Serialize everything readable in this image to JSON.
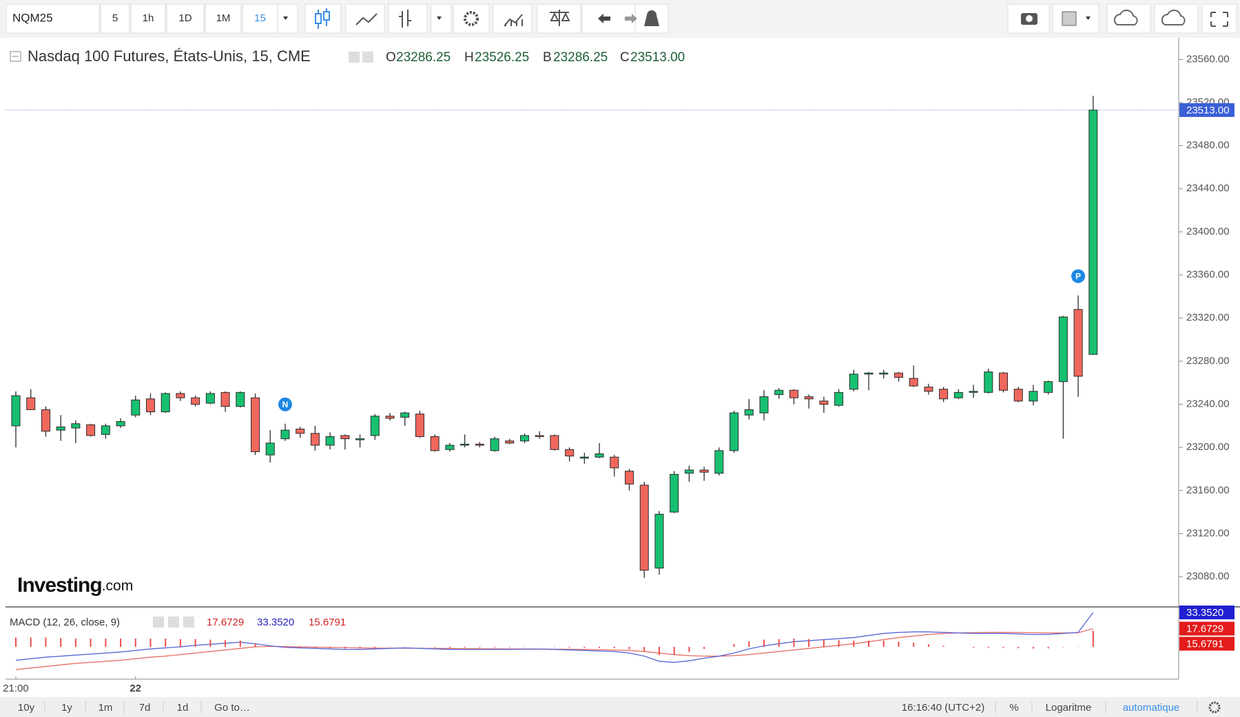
{
  "toolbar": {
    "symbol": "NQM25",
    "intervals": [
      "5",
      "1h",
      "1D",
      "1M",
      "15"
    ]
  },
  "chart_data": [
    {
      "type": "candlestick",
      "title": "Nasdaq 100 Futures, États-Unis, 15, CME",
      "ohlc_legend": [
        {
          "key": "O",
          "value": "23286.25"
        },
        {
          "key": "H",
          "value": "23526.25"
        },
        {
          "key": "B",
          "value": "23286.25"
        },
        {
          "key": "C",
          "value": "23513.00"
        }
      ],
      "categories": [
        "21:00",
        null,
        null,
        null,
        null,
        null,
        null,
        null,
        "22",
        null,
        null,
        null,
        null,
        null,
        null,
        null,
        null,
        null,
        null,
        null,
        null,
        null,
        null,
        null,
        null,
        null,
        null,
        null,
        null,
        null,
        null,
        null,
        null,
        null,
        null,
        null,
        null,
        null,
        null,
        null,
        null,
        null,
        null,
        null,
        null,
        null,
        null,
        null,
        null,
        null,
        null,
        null,
        null,
        null,
        null,
        null,
        null,
        null,
        null,
        null,
        null,
        null,
        null,
        null,
        null,
        null,
        null,
        null,
        null,
        null,
        null,
        null,
        null
      ],
      "open": [
        23220,
        23246,
        23235,
        23216,
        23218,
        23221,
        23212,
        23220,
        23230,
        23245,
        23233,
        23250,
        23246,
        23241,
        23251,
        23238,
        23246,
        23193,
        23208,
        23217,
        23213,
        23202,
        23211,
        23208,
        23211,
        23229,
        23228,
        23231,
        23210,
        23198,
        23203,
        23203,
        23197,
        23206,
        23206,
        23211,
        23211,
        23198,
        23191,
        23191,
        23191,
        23178,
        23165,
        23088,
        23140,
        23176,
        23179,
        23176,
        23197,
        23230,
        23232,
        23249,
        23253,
        23247,
        23243,
        23239,
        23254,
        23268,
        23269,
        23269,
        23264,
        23256,
        23254,
        23246,
        23252,
        23251,
        23269,
        23254,
        23243,
        23251,
        23261,
        23328,
        23286.25
      ],
      "high": [
        23252,
        23254,
        23238,
        23230,
        23225,
        23222,
        23222,
        23227,
        23248,
        23250,
        23251,
        23252,
        23248,
        23252,
        23252,
        23252,
        23250,
        23216,
        23222,
        23219,
        23220,
        23214,
        23212,
        23212,
        23231,
        23232,
        23233,
        23234,
        23212,
        23204,
        23212,
        23205,
        23210,
        23208,
        23213,
        23215,
        23212,
        23200,
        23195,
        23204,
        23193,
        23180,
        23168,
        23141,
        23178,
        23183,
        23182,
        23200,
        23234,
        23245,
        23253,
        23255,
        23254,
        23249,
        23247,
        23254,
        23272,
        23270,
        23272,
        23270,
        23276,
        23259,
        23256,
        23254,
        23258,
        23273,
        23270,
        23256,
        23258,
        23262,
        23322,
        23341,
        23526.25
      ],
      "low": [
        23200,
        23235,
        23210,
        23206,
        23204,
        23210,
        23208,
        23218,
        23228,
        23230,
        23232,
        23243,
        23238,
        23240,
        23233,
        23237,
        23193,
        23186,
        23206,
        23209,
        23197,
        23198,
        23198,
        23200,
        23207,
        23225,
        23220,
        23209,
        23196,
        23196,
        23200,
        23200,
        23196,
        23203,
        23204,
        23208,
        23197,
        23187,
        23185,
        23190,
        23173,
        23160,
        23079,
        23082,
        23139,
        23168,
        23169,
        23174,
        23195,
        23226,
        23225,
        23245,
        23240,
        23236,
        23232,
        23238,
        23252,
        23253,
        23264,
        23261,
        23256,
        23249,
        23242,
        23245,
        23246,
        23250,
        23251,
        23242,
        23239,
        23249,
        23208,
        23247,
        23286.25
      ],
      "close": [
        23248,
        23235,
        23215,
        23219,
        23222,
        23211,
        23220,
        23224,
        23244,
        23233,
        23250,
        23246,
        23240,
        23250,
        23238,
        23251,
        23196,
        23204,
        23216,
        23213,
        23202,
        23210,
        23208,
        23208,
        23229,
        23227,
        23232,
        23210,
        23197,
        23202,
        23203,
        23202,
        23208,
        23204,
        23211,
        23210,
        23198,
        23192,
        23191,
        23194,
        23181,
        23166,
        23086,
        23138,
        23175,
        23179,
        23177,
        23197,
        23232,
        23235,
        23247,
        23253,
        23246,
        23245,
        23240,
        23251,
        23268,
        23269,
        23269,
        23265,
        23257,
        23252,
        23245,
        23251,
        23252,
        23270,
        23253,
        23243,
        23252,
        23261,
        23321,
        23266,
        23513
      ],
      "up_color": "#17c070",
      "down_color": "#f0675d",
      "ylim": [
        23052,
        23580
      ],
      "yticks": [
        {
          "value": 23080,
          "label": "23080.00"
        },
        {
          "value": 23120,
          "label": "23120.00"
        },
        {
          "value": 23160,
          "label": "23160.00"
        },
        {
          "value": 23200,
          "label": "23200.00"
        },
        {
          "value": 23240,
          "label": "23240.00"
        },
        {
          "value": 23280,
          "label": "23280.00"
        },
        {
          "value": 23320,
          "label": "23320.00"
        },
        {
          "value": 23360,
          "label": "23360.00"
        },
        {
          "value": 23400,
          "label": "23400.00"
        },
        {
          "value": 23440,
          "label": "23440.00"
        },
        {
          "value": 23480,
          "label": "23480.00"
        },
        {
          "value": 23520,
          "label": "23520.00"
        },
        {
          "value": 23560,
          "label": "23560.00"
        }
      ],
      "last_price_label": "23513.00",
      "annotations": [
        {
          "label": "N",
          "index": 18
        },
        {
          "label": "P",
          "index": 71
        }
      ],
      "watermark": [
        "Investing",
        ".com"
      ]
    },
    {
      "type": "macd",
      "title": "MACD (12, 26, close, 9)",
      "ylim": [
        -31.3,
        38.7
      ],
      "series": [
        {
          "color": "#e8706a",
          "last_label": "17.6729",
          "values": [
            -22,
            -20.5,
            -19,
            -17.5,
            -16,
            -15,
            -14,
            -13,
            -11.5,
            -10,
            -9,
            -7.5,
            -6,
            -4.5,
            -3,
            -1.5,
            0,
            0.5,
            0.3,
            0,
            -0.3,
            -0.5,
            -0.8,
            -1,
            -1.2,
            -1.3,
            -1.3,
            -1.4,
            -1.5,
            -1.6,
            -1.7,
            -1.8,
            -1.9,
            -2,
            -2,
            -2.1,
            -2.2,
            -2.3,
            -2.5,
            -2.8,
            -3.1,
            -3.6,
            -4.5,
            -6,
            -7.5,
            -8.5,
            -9,
            -9,
            -8.5,
            -7.5,
            -6,
            -4.5,
            -3,
            -1.5,
            0,
            1.5,
            3,
            5,
            7,
            9,
            10.5,
            12,
            13,
            13.5,
            13.8,
            14,
            14,
            13.9,
            13.7,
            13.5,
            13.4,
            13.6,
            17.6729
          ]
        },
        {
          "color": "#5868d8",
          "last_label": "33.3520",
          "values": [
            -13,
            -11.5,
            -10,
            -9,
            -8,
            -7,
            -6,
            -5,
            -3.5,
            -2,
            -1,
            0,
            1.5,
            2.5,
            3.5,
            4.5,
            3,
            1,
            -0.5,
            -1,
            -1.5,
            -2,
            -2.5,
            -2.5,
            -2,
            -1.5,
            -1,
            -1.5,
            -2,
            -2.5,
            -2.5,
            -2.5,
            -2.5,
            -2.5,
            -2.3,
            -2.2,
            -2.5,
            -3,
            -3.5,
            -4,
            -4.5,
            -6,
            -9,
            -14,
            -15,
            -13.5,
            -11,
            -9,
            -6,
            -2,
            1,
            3,
            5,
            6,
            7,
            8,
            9,
            11,
            13,
            14,
            14.5,
            14.5,
            14,
            13.5,
            13,
            13,
            13,
            12.5,
            12,
            12,
            13,
            14,
            33.352
          ]
        },
        {
          "color": "#ee4b4b",
          "last_label": "15.6791",
          "style": "histogram",
          "values": [
            9,
            9,
            9,
            8.5,
            8,
            8,
            8,
            8,
            8,
            8,
            8,
            7.5,
            7.5,
            7,
            6.5,
            6,
            3,
            0.5,
            -0.8,
            -1,
            -1.2,
            -1.5,
            -1.7,
            -1.5,
            -0.8,
            -0.2,
            0.3,
            -0.1,
            -0.5,
            -0.9,
            -0.8,
            -0.7,
            -0.6,
            -0.5,
            -0.3,
            -0.1,
            -0.3,
            -0.7,
            -1,
            -1.2,
            -1.4,
            -2.4,
            -4.5,
            -8,
            -7.5,
            -5,
            -2,
            0,
            2.5,
            5.5,
            7,
            7.5,
            8,
            7.5,
            7,
            6.5,
            6,
            6,
            6,
            5,
            4,
            2.5,
            1,
            0,
            -0.8,
            -1,
            -1,
            -1.4,
            -1.7,
            -1.5,
            -0.4,
            0.4,
            15.6791
          ]
        }
      ]
    }
  ],
  "footer": {
    "ranges": [
      "10y",
      "1y",
      "1m",
      "7d",
      "1d"
    ],
    "goto": "Go to…",
    "time": "16:16:40 (UTC+2)",
    "percent": "%",
    "log": "Logaritme",
    "auto": "automatique"
  }
}
